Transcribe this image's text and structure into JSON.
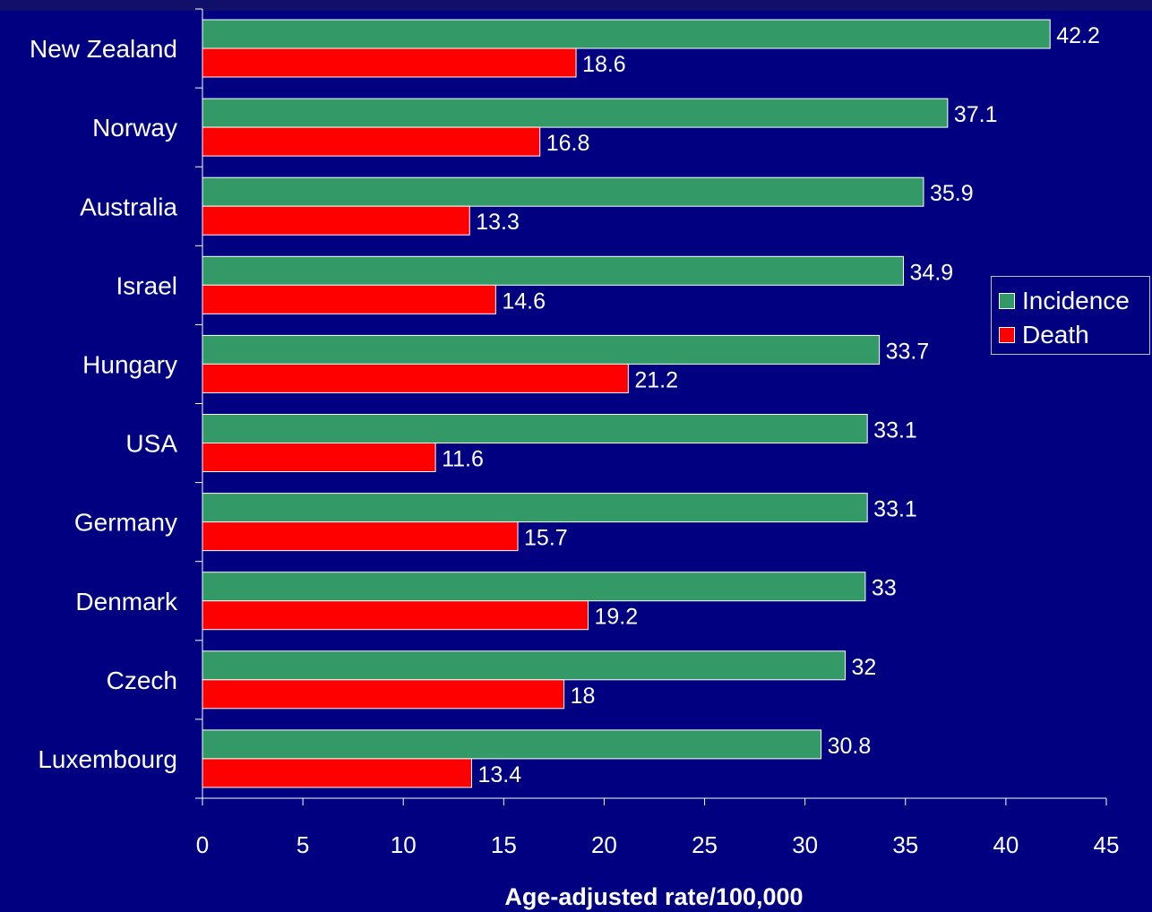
{
  "chart_data": {
    "type": "bar",
    "orientation": "horizontal",
    "categories": [
      "New Zealand",
      "Norway",
      "Australia",
      "Israel",
      "Hungary",
      "USA",
      "Germany",
      "Denmark",
      "Czech",
      "Luxembourg"
    ],
    "series": [
      {
        "name": "Incidence",
        "color": "#339966",
        "values": [
          42.2,
          37.1,
          35.9,
          34.9,
          33.7,
          33.1,
          33.1,
          33,
          32,
          30.8
        ]
      },
      {
        "name": "Death",
        "color": "#ff0000",
        "values": [
          18.6,
          16.8,
          13.3,
          14.6,
          21.2,
          11.6,
          15.7,
          19.2,
          18,
          13.4
        ]
      }
    ],
    "value_labels": {
      "Incidence": [
        "42.2",
        "37.1",
        "35.9",
        "34.9",
        "33.7",
        "33.1",
        "33.1",
        "33",
        "32",
        "30.8"
      ],
      "Death": [
        "18.6",
        "16.8",
        "13.3",
        "14.6",
        "21.2",
        "11.6",
        "15.7",
        "19.2",
        "18",
        "13.4"
      ]
    },
    "xlabel": "Age-adjusted rate/100,000",
    "xlim": [
      0,
      45
    ],
    "xticks": [
      0,
      5,
      10,
      15,
      20,
      25,
      30,
      35,
      40,
      45
    ],
    "grid": false,
    "legend_position": "right"
  },
  "legend": {
    "items": [
      {
        "label": "Incidence",
        "color": "#339966"
      },
      {
        "label": "Death",
        "color": "#ff0000"
      }
    ]
  },
  "colors": {
    "background": "#000080",
    "incidence": "#339966",
    "death": "#ff0000",
    "text": "#ffffff"
  }
}
